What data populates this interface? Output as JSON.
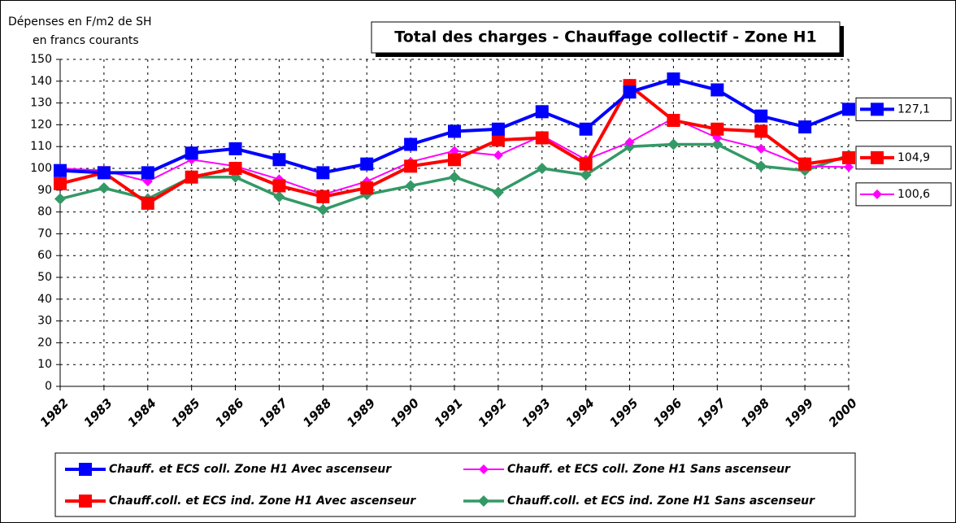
{
  "chart_data": {
    "type": "line",
    "title": "Total des charges - Chauffage collectif - Zone H1",
    "y_label": [
      "Dépenses en F/m2 de SH",
      "en francs courants"
    ],
    "categories": [
      "1982",
      "1983",
      "1984",
      "1985",
      "1986",
      "1987",
      "1988",
      "1989",
      "1990",
      "1991",
      "1992",
      "1993",
      "1994",
      "1995",
      "1996",
      "1997",
      "1998",
      "1999",
      "2000"
    ],
    "ylim": [
      0,
      150
    ],
    "yticks": [
      0,
      10,
      20,
      30,
      40,
      50,
      60,
      70,
      80,
      90,
      100,
      110,
      120,
      130,
      140,
      150
    ],
    "grid": true,
    "series": [
      {
        "name": "Chauff. et ECS coll. Zone H1 Avec ascenseur",
        "color": "#0000ff",
        "marker": "square",
        "values": [
          99,
          98,
          98,
          107,
          109,
          104,
          98,
          102,
          111,
          117,
          118,
          126,
          118,
          135,
          141,
          136,
          124,
          119,
          127.1
        ],
        "value_labels": [
          null,
          null,
          null,
          null,
          null,
          null,
          null,
          null,
          null,
          null,
          null,
          null,
          null,
          null,
          null,
          null,
          null,
          null,
          "127,1"
        ]
      },
      {
        "name": "Chauff. et ECS coll. Zone H1 Sans ascenseur",
        "color": "#ff00ff",
        "marker": "diamond",
        "values": [
          100,
          99,
          94,
          104,
          101,
          95,
          88,
          94,
          103,
          108,
          106,
          115,
          104,
          112,
          123,
          114,
          109,
          101,
          100.6
        ],
        "value_labels": [
          null,
          null,
          null,
          null,
          null,
          null,
          null,
          null,
          null,
          null,
          null,
          null,
          null,
          null,
          null,
          null,
          null,
          null,
          "100,6"
        ]
      },
      {
        "name": "Chauff.coll. et ECS ind. Zone H1 Avec ascenseur",
        "color": "#ff0000",
        "marker": "square",
        "values": [
          93,
          98,
          84,
          96,
          100,
          92,
          87,
          91,
          101,
          104,
          113,
          114,
          102,
          138,
          122,
          118,
          117,
          102,
          104.9
        ],
        "value_labels": [
          null,
          null,
          null,
          null,
          null,
          null,
          null,
          null,
          null,
          null,
          null,
          null,
          null,
          null,
          null,
          null,
          null,
          null,
          "104,9"
        ]
      },
      {
        "name": "Chauff.coll. et ECS ind. Zone H1 Sans ascenseur",
        "color": "#339966",
        "marker": "diamond",
        "values": [
          86,
          91,
          86,
          96,
          96,
          87,
          81,
          88,
          92,
          96,
          89,
          100,
          97,
          110,
          111,
          111,
          101,
          99,
          106
        ]
      }
    ]
  }
}
